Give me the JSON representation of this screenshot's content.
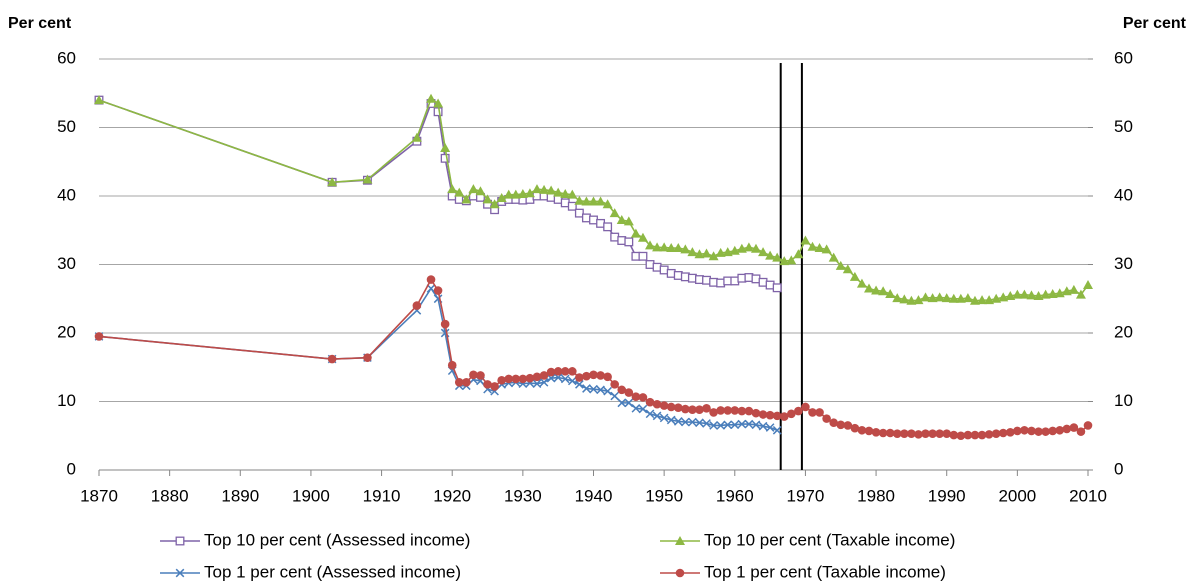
{
  "chart_data": {
    "type": "line",
    "y_label": "Per cent",
    "y2_label": "Per cent",
    "xlim": [
      1870,
      2010
    ],
    "xticks": [
      1870,
      1880,
      1890,
      1900,
      1910,
      1920,
      1930,
      1940,
      1950,
      1960,
      1970,
      1980,
      1990,
      2000,
      2010
    ],
    "ylim": [
      0,
      60
    ],
    "yticks": [
      0,
      10,
      20,
      30,
      40,
      50,
      60
    ],
    "y2lim": [
      0,
      60
    ],
    "y2ticks": [
      0,
      10,
      20,
      30,
      40,
      50,
      60
    ],
    "grid": true,
    "legend": "bottom",
    "vlines": [
      1966.5,
      1969.5
    ],
    "series": [
      {
        "name": "Top 10 per cent (Assessed income)",
        "color": "#7f63a8",
        "marker": "square",
        "x": [
          1870,
          1903,
          1908,
          1915,
          1917,
          1918,
          1919,
          1920,
          1921,
          1922,
          1923,
          1924,
          1925,
          1926,
          1927,
          1928,
          1929,
          1930,
          1931,
          1932,
          1933,
          1934,
          1935,
          1936,
          1937,
          1938,
          1939,
          1940,
          1941,
          1942,
          1943,
          1944,
          1945,
          1946,
          1947,
          1948,
          1949,
          1950,
          1951,
          1952,
          1953,
          1954,
          1955,
          1956,
          1957,
          1958,
          1959,
          1960,
          1961,
          1962,
          1963,
          1964,
          1965,
          1966
        ],
        "values": [
          54,
          42,
          42.3,
          48,
          53.5,
          52.3,
          45.5,
          40,
          39.5,
          39.3,
          40,
          39.8,
          38.8,
          38,
          39.2,
          39.5,
          39.5,
          39.4,
          39.5,
          40,
          40,
          39.8,
          39.5,
          39,
          38.5,
          37.5,
          36.8,
          36.5,
          36,
          35.5,
          34,
          33.5,
          33.3,
          31.2,
          31.2,
          30,
          29.6,
          29.2,
          28.7,
          28.4,
          28.2,
          28,
          27.8,
          27.7,
          27.4,
          27.3,
          27.6,
          27.6,
          28,
          28.1,
          27.9,
          27.4,
          27,
          26.6
        ]
      },
      {
        "name": "Top 10 per cent (Taxable income)",
        "color": "#8db843",
        "marker": "triangle",
        "x": [
          1870,
          1903,
          1908,
          1915,
          1917,
          1918,
          1919,
          1920,
          1921,
          1922,
          1923,
          1924,
          1925,
          1926,
          1927,
          1928,
          1929,
          1930,
          1931,
          1932,
          1933,
          1934,
          1935,
          1936,
          1937,
          1938,
          1939,
          1940,
          1941,
          1942,
          1943,
          1944,
          1945,
          1946,
          1947,
          1948,
          1949,
          1950,
          1951,
          1952,
          1953,
          1954,
          1955,
          1956,
          1957,
          1958,
          1959,
          1960,
          1961,
          1962,
          1963,
          1964,
          1965,
          1966,
          1967,
          1968,
          1969,
          1970,
          1971,
          1972,
          1973,
          1974,
          1975,
          1976,
          1977,
          1978,
          1979,
          1980,
          1981,
          1982,
          1983,
          1984,
          1985,
          1986,
          1987,
          1988,
          1989,
          1990,
          1991,
          1992,
          1993,
          1994,
          1995,
          1996,
          1997,
          1998,
          1999,
          2000,
          2001,
          2002,
          2003,
          2004,
          2005,
          2006,
          2007,
          2008,
          2009,
          2010
        ],
        "values": [
          54,
          42,
          42.4,
          48.5,
          54.2,
          53.5,
          47,
          41,
          40.5,
          39.5,
          41,
          40.7,
          39.5,
          38.8,
          39.7,
          40.2,
          40.2,
          40.3,
          40.4,
          41,
          40.9,
          40.8,
          40.5,
          40.3,
          40.2,
          39.3,
          39.2,
          39.2,
          39.2,
          38.8,
          37.5,
          36.5,
          36.3,
          34.5,
          33.9,
          32.8,
          32.5,
          32.5,
          32.4,
          32.4,
          32.2,
          31.8,
          31.5,
          31.6,
          31.2,
          31.7,
          31.8,
          32,
          32.3,
          32.5,
          32.3,
          31.8,
          31.3,
          31,
          30.5,
          30.6,
          31.5,
          33.5,
          32.6,
          32.4,
          32.2,
          31,
          29.8,
          29.3,
          28.2,
          27.2,
          26.5,
          26.2,
          26.1,
          25.7,
          25.1,
          24.9,
          24.7,
          24.8,
          25.2,
          25.1,
          25.2,
          25.1,
          25,
          25,
          25.1,
          24.7,
          24.8,
          24.8,
          25,
          25.2,
          25.4,
          25.6,
          25.6,
          25.5,
          25.4,
          25.6,
          25.7,
          25.8,
          26.1,
          26.3,
          25.6,
          27
        ]
      },
      {
        "name": "Top 1 per cent (Assessed income)",
        "color": "#4a7ebb",
        "marker": "x",
        "x": [
          1870,
          1903,
          1908,
          1915,
          1917,
          1918,
          1919,
          1920,
          1921,
          1922,
          1923,
          1924,
          1925,
          1926,
          1927,
          1928,
          1929,
          1930,
          1931,
          1932,
          1933,
          1934,
          1935,
          1936,
          1937,
          1938,
          1939,
          1940,
          1941,
          1942,
          1943,
          1944,
          1945,
          1946,
          1947,
          1948,
          1949,
          1950,
          1951,
          1952,
          1953,
          1954,
          1955,
          1956,
          1957,
          1958,
          1959,
          1960,
          1961,
          1962,
          1963,
          1964,
          1965,
          1966
        ],
        "values": [
          19.5,
          16.2,
          16.4,
          23.3,
          26.5,
          25,
          20,
          14.5,
          12.3,
          12.3,
          13.2,
          13,
          11.8,
          11.5,
          12.5,
          12.7,
          12.8,
          12.6,
          12.7,
          12.6,
          12.8,
          13.4,
          13.5,
          13.3,
          13,
          12.5,
          11.9,
          11.8,
          11.7,
          11.5,
          10.8,
          9.8,
          9.8,
          9,
          8.9,
          8.2,
          7.9,
          7.6,
          7.3,
          7.1,
          7,
          7,
          6.9,
          6.8,
          6.5,
          6.5,
          6.6,
          6.6,
          6.7,
          6.7,
          6.6,
          6.4,
          6.2,
          5.8
        ]
      },
      {
        "name": "Top 1 per cent (Taxable income)",
        "color": "#be4b48",
        "marker": "circle",
        "x": [
          1870,
          1903,
          1908,
          1915,
          1917,
          1918,
          1919,
          1920,
          1921,
          1922,
          1923,
          1924,
          1925,
          1926,
          1927,
          1928,
          1929,
          1930,
          1931,
          1932,
          1933,
          1934,
          1935,
          1936,
          1937,
          1938,
          1939,
          1940,
          1941,
          1942,
          1943,
          1944,
          1945,
          1946,
          1947,
          1948,
          1949,
          1950,
          1951,
          1952,
          1953,
          1954,
          1955,
          1956,
          1957,
          1958,
          1959,
          1960,
          1961,
          1962,
          1963,
          1964,
          1965,
          1966,
          1967,
          1968,
          1969,
          1970,
          1971,
          1972,
          1973,
          1974,
          1975,
          1976,
          1977,
          1978,
          1979,
          1980,
          1981,
          1982,
          1983,
          1984,
          1985,
          1986,
          1987,
          1988,
          1989,
          1990,
          1991,
          1992,
          1993,
          1994,
          1995,
          1996,
          1997,
          1998,
          1999,
          2000,
          2001,
          2002,
          2003,
          2004,
          2005,
          2006,
          2007,
          2008,
          2009,
          2010
        ],
        "values": [
          19.5,
          16.2,
          16.4,
          24,
          27.8,
          26.2,
          21.3,
          15.3,
          12.8,
          12.8,
          13.9,
          13.8,
          12.5,
          12.2,
          13.1,
          13.3,
          13.3,
          13.3,
          13.4,
          13.6,
          13.8,
          14.3,
          14.4,
          14.4,
          14.4,
          13.5,
          13.7,
          13.9,
          13.8,
          13.6,
          12.5,
          11.7,
          11.3,
          10.7,
          10.6,
          9.9,
          9.6,
          9.4,
          9.2,
          9.1,
          8.9,
          8.8,
          8.8,
          9,
          8.4,
          8.7,
          8.7,
          8.7,
          8.6,
          8.6,
          8.3,
          8.1,
          8,
          7.9,
          7.8,
          8.2,
          8.6,
          9.2,
          8.4,
          8.4,
          7.5,
          6.9,
          6.6,
          6.5,
          6.1,
          5.8,
          5.7,
          5.5,
          5.4,
          5.4,
          5.3,
          5.3,
          5.3,
          5.2,
          5.3,
          5.3,
          5.3,
          5.3,
          5.1,
          5,
          5.1,
          5.1,
          5.1,
          5.2,
          5.3,
          5.4,
          5.5,
          5.7,
          5.8,
          5.7,
          5.6,
          5.6,
          5.7,
          5.8,
          6,
          6.2,
          5.6,
          6.5
        ]
      }
    ]
  }
}
